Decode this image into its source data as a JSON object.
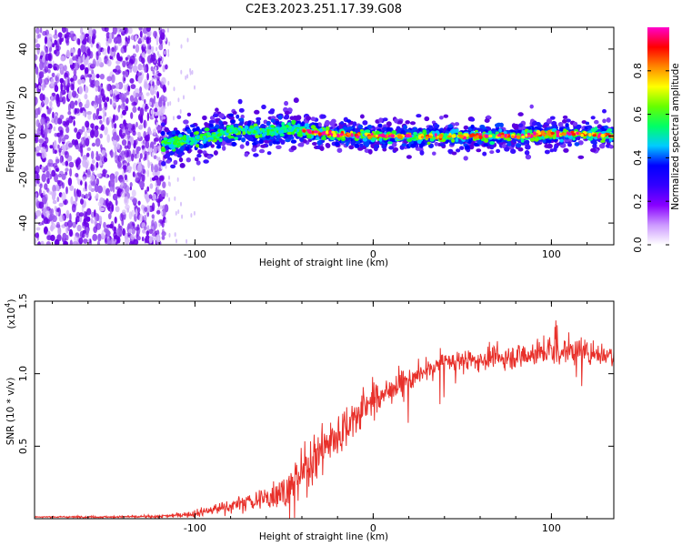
{
  "title": "C2E3.2023.251.17.39.G08",
  "chart_data": [
    {
      "type": "heatmap",
      "title": "C2E3.2023.251.17.39.G08",
      "xlabel": "Height of straight line (km)",
      "ylabel": "Frequency (Hz)",
      "xlim": [
        -190,
        135
      ],
      "ylim": [
        -50,
        50
      ],
      "x_ticks": [
        -100,
        0,
        100
      ],
      "x_tick_labels": [
        "-100",
        "0",
        "100"
      ],
      "y_ticks": [
        -40,
        -20,
        0,
        20,
        40
      ],
      "y_tick_labels": [
        "-40",
        "-20",
        "0",
        "20",
        "40"
      ],
      "grid": false,
      "colorbar": {
        "label": "Normalized spectral amplitude",
        "range": [
          0,
          1
        ],
        "ticks": [
          0.0,
          0.2,
          0.4,
          0.6,
          0.8
        ],
        "tick_labels": [
          "0.0",
          "0.2",
          "0.4",
          "0.6",
          "0.8"
        ],
        "colors": [
          "#ffffff",
          "#cc99ff",
          "#8800ff",
          "#3300ff",
          "#0000ff",
          "#00ccff",
          "#00ff66",
          "#66ff00",
          "#ffff00",
          "#ff8800",
          "#ff0000",
          "#ff00cc"
        ]
      },
      "ridge": {
        "x": [
          -118,
          -105,
          -90,
          -75,
          -60,
          -45,
          -35,
          -20,
          0,
          20,
          40,
          60,
          80,
          100,
          120,
          135
        ],
        "frequency": [
          -4,
          -2,
          0,
          3,
          2,
          3,
          2,
          1,
          0,
          0,
          0,
          0,
          0,
          1,
          1,
          0
        ]
      },
      "noise_region_x": [
        -190,
        -120
      ],
      "noise_color": "#6a00e8"
    },
    {
      "type": "line",
      "xlabel": "Height of straight line (km)",
      "ylabel": "SNR (10 * v/v)",
      "y_multiplier": "(x10",
      "y_multiplier_exp": "4",
      "y_multiplier_close": ")",
      "xlim": [
        -190,
        135
      ],
      "ylim": [
        0,
        15000
      ],
      "x_ticks": [
        -100,
        0,
        100
      ],
      "x_tick_labels": [
        "-100",
        "0",
        "100"
      ],
      "y_ticks": [
        5000,
        10000,
        15000
      ],
      "y_tick_labels": [
        "0.5",
        "1.0",
        "1.5"
      ],
      "grid": false,
      "color": "#e8302a",
      "trend": {
        "x": [
          -190,
          -150,
          -120,
          -100,
          -80,
          -60,
          -45,
          -35,
          -28,
          -20,
          -10,
          0,
          10,
          20,
          30,
          40,
          60,
          80,
          100,
          120,
          135
        ],
        "y": [
          120,
          120,
          150,
          350,
          900,
          1400,
          2300,
          4000,
          5000,
          5800,
          7000,
          8200,
          9000,
          9600,
          10200,
          10800,
          11000,
          11200,
          11600,
          11500,
          11300
        ]
      },
      "noise": {
        "x": [
          -190,
          -120,
          -100,
          -80,
          -60,
          -45,
          -35,
          -20,
          -10,
          0,
          20,
          40,
          60,
          100,
          135
        ],
        "amplitude": [
          40,
          80,
          200,
          500,
          700,
          1100,
          1500,
          1400,
          1300,
          1000,
          800,
          650,
          650,
          800,
          700
        ]
      }
    }
  ]
}
